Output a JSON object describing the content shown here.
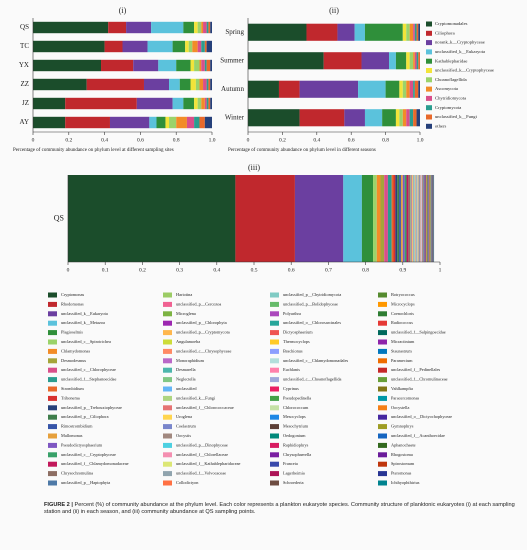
{
  "chart_data": [
    {
      "type": "bar",
      "orientation": "horizontal",
      "stacked": true,
      "title": "(i)",
      "categories": [
        "QS",
        "TC",
        "YX",
        "ZZ",
        "JZ",
        "AY"
      ],
      "xlabel": "Percentage of community abundance on phylum level at different sampling sites",
      "xlim": [
        0,
        1
      ],
      "xticks": [
        0,
        0.2,
        0.4,
        0.6,
        0.8,
        {
          "value": 1,
          "label": "1.0"
        }
      ],
      "series": [
        {
          "color": "#1b4d2b",
          "values": [
            0.42,
            0.4,
            0.38,
            0.3,
            0.18,
            0.18
          ]
        },
        {
          "color": "#c0282d",
          "values": [
            0.1,
            0.1,
            0.18,
            0.32,
            0.4,
            0.25
          ]
        },
        {
          "color": "#6b3fa0",
          "values": [
            0.14,
            0.14,
            0.14,
            0.14,
            0.2,
            0.22
          ]
        },
        {
          "color": "#5bc2dc",
          "values": [
            0.18,
            0.14,
            0.1,
            0.06,
            0.06,
            0.04
          ]
        },
        {
          "color": "#2f8f3a",
          "values": [
            0.06,
            0.07,
            0.08,
            0.06,
            0.06,
            0.05
          ]
        },
        {
          "color": "#f2e43a",
          "values": [
            0.02,
            0.02,
            0.02,
            0.03,
            0.02,
            0.02
          ]
        },
        {
          "color": "#9bd36a",
          "values": [
            0.02,
            0.02,
            0.03,
            0.02,
            0.02,
            0.04
          ]
        },
        {
          "color": "#f28c28",
          "values": [
            0.01,
            0.03,
            0.01,
            0.02,
            0.02,
            0.06
          ]
        },
        {
          "color": "#d94f8a",
          "values": [
            0.02,
            0.02,
            0.02,
            0.02,
            0.01,
            0.04
          ]
        },
        {
          "color": "#2a9d8f",
          "values": [
            0.01,
            0.02,
            0.01,
            0.01,
            0.01,
            0.03
          ]
        },
        {
          "color": "#e8692b",
          "values": [
            0.01,
            0.01,
            0.02,
            0.01,
            0.01,
            0.03
          ]
        },
        {
          "color": "#26407a",
          "values": [
            0.01,
            0.03,
            0.01,
            0.01,
            0.01,
            0.04
          ]
        }
      ]
    },
    {
      "type": "bar",
      "orientation": "horizontal",
      "stacked": true,
      "title": "(ii)",
      "legend": "right",
      "categories": [
        "Spring",
        "Summer",
        "Autumn",
        "Winter"
      ],
      "xlabel": "Percentage of community abundance on phylum level in different seasons",
      "xlim": [
        0,
        1
      ],
      "xticks": [
        0,
        0.2,
        0.4,
        0.6,
        0.8,
        {
          "value": 1,
          "label": "1.0"
        }
      ],
      "series": [
        {
          "name": "Cryptomonadales",
          "color": "#1b4d2b",
          "values": [
            0.34,
            0.44,
            0.18,
            0.3
          ]
        },
        {
          "name": "Ciliophora",
          "color": "#c0282d",
          "values": [
            0.18,
            0.22,
            0.12,
            0.26
          ]
        },
        {
          "name": "norank_k__Cryptophyceae",
          "color": "#6b3fa0",
          "values": [
            0.1,
            0.16,
            0.34,
            0.12
          ]
        },
        {
          "name": "unclassified_k__Eukaryota",
          "color": "#5bc2dc",
          "values": [
            0.06,
            0.04,
            0.16,
            0.1
          ]
        },
        {
          "name": "Kathablepharidae",
          "color": "#2f8f3a",
          "values": [
            0.22,
            0.06,
            0.08,
            0.08
          ]
        },
        {
          "name": "unclassified_k__Cryptophyceae",
          "color": "#f2e43a",
          "values": [
            0.02,
            0.02,
            0.02,
            0.02
          ]
        },
        {
          "name": "Choanoflagellida",
          "color": "#9bd36a",
          "values": [
            0.02,
            0.02,
            0.02,
            0.02
          ]
        },
        {
          "name": "Ascomycota",
          "color": "#f28c28",
          "values": [
            0.02,
            0.01,
            0.02,
            0.02
          ]
        },
        {
          "name": "Chytridiomycota",
          "color": "#d94f8a",
          "values": [
            0.01,
            0.01,
            0.02,
            0.02
          ]
        },
        {
          "name": "Cryptomycota",
          "color": "#2a9d8f",
          "values": [
            0.01,
            0.01,
            0.01,
            0.02
          ]
        },
        {
          "name": "unclassified_k__Fungi",
          "color": "#e8692b",
          "values": [
            0.01,
            0.01,
            0.02,
            0.02
          ]
        },
        {
          "name": "others",
          "color": "#26407a",
          "values": [
            0.01,
            0,
            0.01,
            0.02
          ]
        }
      ]
    },
    {
      "type": "bar",
      "orientation": "horizontal",
      "stacked": true,
      "title": "(iii)",
      "legend": "bottom",
      "categories": [
        "QS"
      ],
      "xlim": [
        0,
        1
      ],
      "xticks": [
        0,
        0.1,
        0.2,
        0.3,
        0.4,
        0.5,
        0.6,
        0.7,
        0.8,
        0.9,
        1
      ],
      "series": [
        {
          "name": "Cryptomonas",
          "color": "#1b4d2b",
          "values": [
            0.45
          ]
        },
        {
          "name": "Rhodomonas",
          "color": "#c0282d",
          "values": [
            0.16
          ]
        },
        {
          "name": "unclassified_k__Eukaryota",
          "color": "#6b3fa0",
          "values": [
            0.13
          ]
        },
        {
          "name": "unclassified_k__Metazoa",
          "color": "#5bc2dc",
          "values": [
            0.05
          ]
        },
        {
          "name": "Plagioselmis",
          "color": "#2f8f3a",
          "values": [
            0.03
          ]
        },
        {
          "name": "unclassified_c__Spirotrichea",
          "color": "#9bd36a",
          "values": [
            0.01
          ]
        },
        {
          "name": "Chlamydomonas",
          "color": "#f28c28",
          "values": [
            0.01
          ]
        },
        {
          "name": "Desmodesmus",
          "color": "#a5a53a",
          "values": [
            0.01
          ]
        },
        {
          "name": "unclassified_c__Chlorophyceae",
          "color": "#d94f8a",
          "values": [
            0.01
          ]
        },
        {
          "name": "unclassified_f__Stephanoecidae",
          "color": "#2a9d8f",
          "values": [
            0.01
          ]
        },
        {
          "name": "Strombidium",
          "color": "#e8692b",
          "values": [
            0.005
          ]
        },
        {
          "name": "Tribonema",
          "color": "#d8312f",
          "values": [
            0.005
          ]
        },
        {
          "name": "unclassified_p__Trebouxiophyceae",
          "color": "#26407a",
          "values": [
            0.005
          ]
        },
        {
          "name": "unclassified_p__Ciliophora",
          "color": "#3e7d4b",
          "values": [
            0.005
          ]
        },
        {
          "name": "Rimostrombidium",
          "color": "#3654a8",
          "values": [
            0.005
          ]
        },
        {
          "name": "Mallomonas",
          "color": "#e6a03c",
          "values": [
            0.005
          ]
        },
        {
          "name": "Pseudodictyosphaerium",
          "color": "#7e57c2",
          "values": [
            0.005
          ]
        },
        {
          "name": "unclassified_c__Cryptophyceae",
          "color": "#38a169",
          "values": [
            0.005
          ]
        },
        {
          "name": "unclassified_f__Chlamydomonadaceae",
          "color": "#c2185b",
          "values": [
            0.005
          ]
        },
        {
          "name": "Chrysochromulina",
          "color": "#8d6e63",
          "values": [
            0.005
          ]
        },
        {
          "name": "unclassified_p__Haptophyta",
          "color": "#4e79a7",
          "values": [
            0.001
          ]
        },
        {
          "name": "Hariotina",
          "color": "#9ccc65",
          "values": [
            0.001
          ]
        },
        {
          "name": "unclassified_p__Cercozoa",
          "color": "#f06292",
          "values": [
            0.001
          ]
        },
        {
          "name": "Microglena",
          "color": "#7cb342",
          "values": [
            0.001
          ]
        },
        {
          "name": "unclassified_p__Chlorophyta",
          "color": "#9c27b0",
          "values": [
            0.001
          ]
        },
        {
          "name": "unclassified_p__Cryptomycota",
          "color": "#ffb74d",
          "values": [
            0.001
          ]
        },
        {
          "name": "Angulamoeba",
          "color": "#cddc39",
          "values": [
            0.001
          ]
        },
        {
          "name": "unclassified_c__Chrysophyceae",
          "color": "#ff8a65",
          "values": [
            0.001
          ]
        },
        {
          "name": "Monoraphidium",
          "color": "#ba68c8",
          "values": [
            0.001
          ]
        },
        {
          "name": "Desmarella",
          "color": "#4db6ac",
          "values": [
            0.001
          ]
        },
        {
          "name": "Neglectella",
          "color": "#81c784",
          "values": [
            0.001
          ]
        },
        {
          "name": "unclassified",
          "color": "#64b5f6",
          "values": [
            0.001
          ]
        },
        {
          "name": "unclassified_k__Fungi",
          "color": "#aed581",
          "values": [
            0.001
          ]
        },
        {
          "name": "unclassified_f__Chlorococcaceae",
          "color": "#e57373",
          "values": [
            0.001
          ]
        },
        {
          "name": "Uroglena",
          "color": "#ffd54f",
          "values": [
            0.001
          ]
        },
        {
          "name": "Coelastrum",
          "color": "#7986cb",
          "values": [
            0.001
          ]
        },
        {
          "name": "Oocystis",
          "color": "#a1887f",
          "values": [
            0.001
          ]
        },
        {
          "name": "unclassified_p__Dinophyceae",
          "color": "#4dd0e1",
          "values": [
            0.001
          ]
        },
        {
          "name": "unclassified_f__Chlorellaceae",
          "color": "#f48fb1",
          "values": [
            0.001
          ]
        },
        {
          "name": "unclassified_f__Kathablepharidaceae",
          "color": "#dce775",
          "values": [
            0.001
          ]
        },
        {
          "name": "unclassified_f__Volvocaceae",
          "color": "#90a4ae",
          "values": [
            0.001
          ]
        },
        {
          "name": "Collodictyon",
          "color": "#ff7043",
          "values": [
            0.001
          ]
        },
        {
          "name": "unclassified_p__Chytridiomycota",
          "color": "#80cbc4",
          "values": [
            0.001
          ]
        },
        {
          "name": "unclassified_p__Bolidophyceae",
          "color": "#66bb6a",
          "values": [
            0.001
          ]
        },
        {
          "name": "Polyarthra",
          "color": "#ab47bc",
          "values": [
            0.001
          ]
        },
        {
          "name": "unclassified_o__Chlorosarcinales",
          "color": "#26a69a",
          "values": [
            0.001
          ]
        },
        {
          "name": "Dictyosphaerium",
          "color": "#ef5350",
          "values": [
            0.001
          ]
        },
        {
          "name": "Thermocyclops",
          "color": "#ffca28",
          "values": [
            0.001
          ]
        },
        {
          "name": "Brachionus",
          "color": "#8c9eff",
          "values": [
            0.001
          ]
        },
        {
          "name": "unclassified_c__Chlamydomonadales",
          "color": "#b2dfdb",
          "values": [
            0.001
          ]
        },
        {
          "name": "Euchlanis",
          "color": "#ff80ab",
          "values": [
            0.001
          ]
        },
        {
          "name": "unclassified_c__Choanoflagellida",
          "color": "#9fa8da",
          "values": [
            0.001
          ]
        },
        {
          "name": "Cyprinus",
          "color": "#e91e63",
          "values": [
            0.001
          ]
        },
        {
          "name": "Pseudopedinella",
          "color": "#43a047",
          "values": [
            0.001
          ]
        },
        {
          "name": "Chlorococcum",
          "color": "#c5e1a5",
          "values": [
            0.001
          ]
        },
        {
          "name": "Mesocyclops",
          "color": "#1e88e5",
          "values": [
            0.001
          ]
        },
        {
          "name": "Mesochytrium",
          "color": "#5d4037",
          "values": [
            0.001
          ]
        },
        {
          "name": "Oedogonium",
          "color": "#00897b",
          "values": [
            0.001
          ]
        },
        {
          "name": "Raphidiophrys",
          "color": "#d81b60",
          "values": [
            0.001
          ]
        },
        {
          "name": "Chrysophaerella",
          "color": "#7b1fa2",
          "values": [
            0.001
          ]
        },
        {
          "name": "Franceia",
          "color": "#3949ab",
          "values": [
            0.001
          ]
        },
        {
          "name": "Lagerheimia",
          "color": "#ad1457",
          "values": [
            0.001
          ]
        },
        {
          "name": "Schroederia",
          "color": "#6d4c41",
          "values": [
            0.001
          ]
        },
        {
          "name": "Botryococcus",
          "color": "#558b2f",
          "values": [
            0.001
          ]
        },
        {
          "name": "Microcyclops",
          "color": "#ff9800",
          "values": [
            0.001
          ]
        },
        {
          "name": "Coenochloris",
          "color": "#2e7d32",
          "values": [
            0.001
          ]
        },
        {
          "name": "Radiococcus",
          "color": "#e53935",
          "values": [
            0.001
          ]
        },
        {
          "name": "unclassified_f__Salpingoecidae",
          "color": "#00695c",
          "values": [
            0.001
          ]
        },
        {
          "name": "Micractinium",
          "color": "#8e24aa",
          "values": [
            0.001
          ]
        },
        {
          "name": "Staurastrum",
          "color": "#0277bd",
          "values": [
            0.001
          ]
        },
        {
          "name": "Paramecium",
          "color": "#ef6c00",
          "values": [
            0.001
          ]
        },
        {
          "name": "unclassified_f__Pedinellales",
          "color": "#c62828",
          "values": [
            0.001
          ]
        },
        {
          "name": "unclassified_f__Chromulinaceae",
          "color": "#689f38",
          "values": [
            0.001
          ]
        },
        {
          "name": "Vahlkampfia",
          "color": "#827717",
          "values": [
            0.001
          ]
        },
        {
          "name": "Paracercomonas",
          "color": "#0097a7",
          "values": [
            0.001
          ]
        },
        {
          "name": "Oocystella",
          "color": "#f57f17",
          "values": [
            0.001
          ]
        },
        {
          "name": "unclassified_o__Dictyochophyceae",
          "color": "#4527a0",
          "values": [
            0.001
          ]
        },
        {
          "name": "Gymnophrys",
          "color": "#9e9d24",
          "values": [
            0.001
          ]
        },
        {
          "name": "unclassified_f__Acanthoecidae",
          "color": "#1565c0",
          "values": [
            0.001
          ]
        },
        {
          "name": "Aphanochaete",
          "color": "#33691e",
          "values": [
            0.001
          ]
        },
        {
          "name": "Rhogostoma",
          "color": "#6a1b9a",
          "values": [
            0.001
          ]
        },
        {
          "name": "Spirostomum",
          "color": "#bf360c",
          "values": [
            0.001
          ]
        },
        {
          "name": "Pteromonas",
          "color": "#283593",
          "values": [
            0.001
          ]
        },
        {
          "name": "Ichthyophthirius",
          "color": "#00838f",
          "values": [
            0.001
          ]
        }
      ]
    }
  ],
  "caption": {
    "label": "FIGURE 2 |",
    "text": "Percent (%) of community abundance at the phylum level. Each color represents a plankton eukaryote species. Community structure of planktonic eukaryotes (i) at each sampling station and (ii) in each season, and (iii) community abundance at QS sampling points."
  }
}
